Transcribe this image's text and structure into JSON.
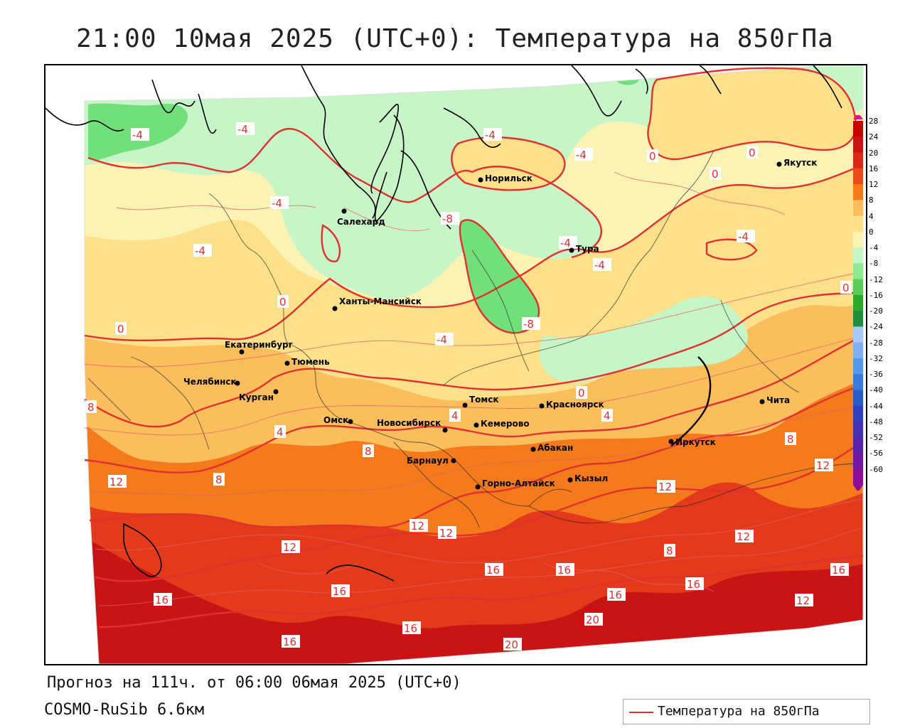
{
  "title": "21:00 10мая 2025 (UTC+0): Температура на 850гПа",
  "forecast_line": "Прогноз на 111ч. от 06:00 06мая 2025 (UTC+0)",
  "model_line": "COSMO-RuSib 6.6км",
  "legend_label": "Температура на 850гПа",
  "colors": {
    "contour": "#e03030",
    "band_light_green": "#c8f5c8",
    "band_green": "#72e07a",
    "band_light_yellow": "#fbf3b4",
    "band_yellow": "#fde08a",
    "band_orange_light": "#fbbe5c",
    "band_orange": "#f47a1c",
    "band_red": "#e23a1a",
    "band_dark_red": "#c81414"
  },
  "scale_values": [
    "28",
    "24",
    "20",
    "16",
    "12",
    "8",
    "4",
    "0",
    "-4",
    "-8",
    "-12",
    "-16",
    "-20",
    "-24",
    "-28",
    "-32",
    "-36",
    "-40",
    "-44",
    "-48",
    "-52",
    "-56",
    "-60"
  ],
  "scale_colors": [
    "#c80000",
    "#c81414",
    "#d82818",
    "#e84a1a",
    "#f47a1c",
    "#fbbe5c",
    "#fde08a",
    "#fbf3b4",
    "#c8f5c8",
    "#90e890",
    "#5acc5a",
    "#2da82d",
    "#1f8f3f",
    "#a8c8f8",
    "#80b0f0",
    "#5898e8",
    "#3a7adc",
    "#2a5cc8",
    "#3040b8",
    "#4432b0",
    "#5a24a8",
    "#7018a0",
    "#8a0c98"
  ],
  "cities": [
    {
      "name": "Норильск"
    },
    {
      "name": "Якутск"
    },
    {
      "name": "Салехард"
    },
    {
      "name": "Тура"
    },
    {
      "name": "Ханты-Мансийск"
    },
    {
      "name": "Екатеринбург"
    },
    {
      "name": "Тюмень"
    },
    {
      "name": "Челябинск"
    },
    {
      "name": "Курган"
    },
    {
      "name": "Томск"
    },
    {
      "name": "Красноярск"
    },
    {
      "name": "Чита"
    },
    {
      "name": "Омск"
    },
    {
      "name": "Новосибирск"
    },
    {
      "name": "Кемерово"
    },
    {
      "name": "Абакан"
    },
    {
      "name": "Иркутск"
    },
    {
      "name": "Барнаул"
    },
    {
      "name": "Кызыл"
    },
    {
      "name": "Горно-Алтайск"
    }
  ],
  "contour_labels": [
    "-4",
    "-4",
    "-4",
    "-4",
    "-4",
    "-4",
    "-4",
    "-4",
    "-4",
    "-4",
    "-8",
    "-8",
    "0",
    "0",
    "0",
    "0",
    "0",
    "0",
    "0",
    "4",
    "4",
    "4",
    "8",
    "8",
    "8",
    "8",
    "8",
    "12",
    "12",
    "12",
    "12",
    "12",
    "12",
    "12",
    "12",
    "16",
    "16",
    "16",
    "16",
    "16",
    "16",
    "16",
    "16",
    "16",
    "20",
    "20"
  ]
}
